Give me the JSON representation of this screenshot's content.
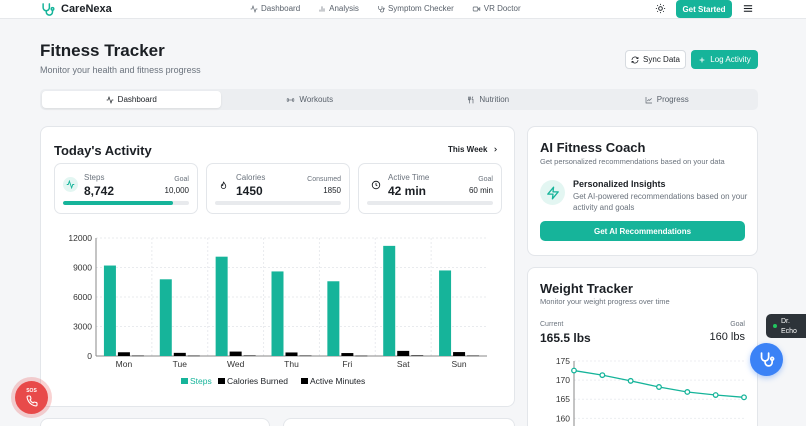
{
  "app": {
    "name": "CareNexa"
  },
  "nav": {
    "links": [
      {
        "label": "Dashboard",
        "icon": "activity-icon"
      },
      {
        "label": "Analysis",
        "icon": "bar-chart-icon"
      },
      {
        "label": "Symptom Checker",
        "icon": "stethoscope-icon"
      },
      {
        "label": "VR Doctor",
        "icon": "video-icon"
      }
    ],
    "get_started": "Get Started"
  },
  "page": {
    "title": "Fitness Tracker",
    "subtitle": "Monitor your health and fitness progress",
    "sync_label": "Sync Data",
    "log_label": "Log Activity"
  },
  "tabs": [
    {
      "label": "Dashboard",
      "icon": "activity-icon",
      "active": true
    },
    {
      "label": "Workouts",
      "icon": "dumbbell-icon",
      "active": false
    },
    {
      "label": "Nutrition",
      "icon": "utensils-icon",
      "active": false
    },
    {
      "label": "Progress",
      "icon": "line-chart-icon",
      "active": false
    }
  ],
  "activity": {
    "title": "Today's Activity",
    "period": "This Week",
    "metrics": [
      {
        "label": "Steps",
        "value": "8,742",
        "right_label": "Goal",
        "right_value": "10,000",
        "progress": 0.874
      },
      {
        "label": "Calories",
        "value": "1450",
        "right_label": "Consumed",
        "right_value": "1850",
        "progress": 0
      },
      {
        "label": "Active Time",
        "value": "42 min",
        "right_label": "Goal",
        "right_value": "60 min",
        "progress": 0
      }
    ]
  },
  "chart_data": {
    "type": "bar",
    "categories": [
      "Mon",
      "Tue",
      "Wed",
      "Thu",
      "Fri",
      "Sat",
      "Sun"
    ],
    "series": [
      {
        "name": "Steps",
        "color": "#16b49a",
        "values": [
          9200,
          7800,
          10100,
          8600,
          7600,
          11200,
          8700
        ]
      },
      {
        "name": "Calories Burned",
        "color": "#000000",
        "values": [
          380,
          320,
          450,
          360,
          300,
          520,
          400
        ]
      },
      {
        "name": "Active Minutes",
        "color": "#000000",
        "values": [
          40,
          35,
          55,
          45,
          30,
          65,
          42
        ]
      }
    ],
    "yticks": [
      "12000",
      "9000",
      "6000",
      "3000",
      "0"
    ],
    "ylim": [
      0,
      12000
    ],
    "grid": true,
    "legend": "bottom"
  },
  "coach": {
    "title": "AI Fitness Coach",
    "subtitle": "Get personalized recommendations based on your data",
    "insight_title": "Personalized Insights",
    "insight_text_1": "Get AI-powered recommendations based on your",
    "insight_text_2": "activity and goals",
    "button": "Get AI Recommendations"
  },
  "weight": {
    "title": "Weight Tracker",
    "subtitle": "Monitor your weight progress over time",
    "current_label": "Current",
    "current_value": "165.5 lbs",
    "goal_label": "Goal",
    "goal_value": "160 lbs",
    "chart": {
      "type": "line",
      "yticks": [
        "175",
        "170",
        "165",
        "160"
      ],
      "ylim": [
        158,
        175
      ],
      "values": [
        172.5,
        171.3,
        169.8,
        168.2,
        166.9,
        166.1,
        165.5
      ],
      "color": "#16b49a"
    }
  },
  "floating": {
    "sos": "SOS",
    "doctor_badge_1": "Dr.",
    "doctor_badge_2": "Echo"
  }
}
